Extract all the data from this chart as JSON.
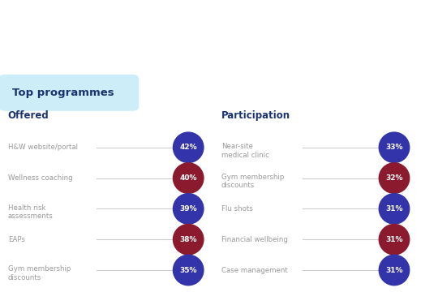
{
  "title": "Top programmes",
  "offered_label": "Offered",
  "participation_label": "Participation",
  "offered": {
    "labels": [
      "H&W website/portal",
      "Wellness coaching",
      "Health risk\nassessments",
      "EAPs",
      "Gym membership\ndiscounts"
    ],
    "values": [
      "42%",
      "40%",
      "39%",
      "38%",
      "35%"
    ],
    "colors": [
      "#3333aa",
      "#8b1a2e",
      "#3333aa",
      "#8b1a2e",
      "#3333aa"
    ]
  },
  "participation": {
    "labels": [
      "Near-site\nmedical clinic",
      "Gym membership\ndiscounts",
      "Flu shots",
      "Financial wellbeing",
      "Case management"
    ],
    "values": [
      "33%",
      "32%",
      "31%",
      "31%",
      "31%"
    ],
    "colors": [
      "#3333aa",
      "#8b1a2e",
      "#3333aa",
      "#8b1a2e",
      "#3333aa"
    ]
  },
  "bg_color": "#ffffff",
  "title_bg_color": "#cdeef8",
  "label_color": "#999999",
  "header_color": "#1a3472",
  "line_color": "#cccccc",
  "title_fontsize": 9.5,
  "header_fontsize": 8.5,
  "label_fontsize": 6.2,
  "value_fontsize": 6.5
}
